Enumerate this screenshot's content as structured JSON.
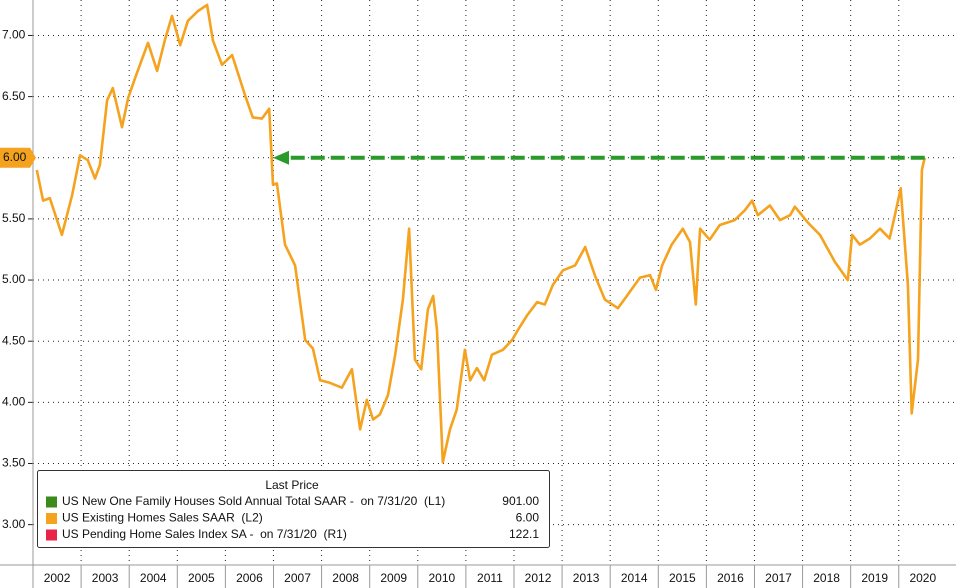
{
  "chart_data": {
    "type": "line",
    "series": [
      {
        "name": "US Existing Homes Sales SAAR  (L2)",
        "color": "#f5a21e",
        "x": [
          2002.08,
          2002.21,
          2002.35,
          2002.6,
          2002.81,
          2002.98,
          2003.14,
          2003.29,
          2003.39,
          2003.54,
          2003.66,
          2003.85,
          2003.98,
          2004.12,
          2004.39,
          2004.58,
          2004.74,
          2004.89,
          2005.06,
          2005.22,
          2005.43,
          2005.62,
          2005.74,
          2005.93,
          2006.14,
          2006.41,
          2006.57,
          2006.76,
          2006.91,
          2006.99,
          2007.07,
          2007.24,
          2007.45,
          2007.66,
          2007.82,
          2007.97,
          2008.17,
          2008.42,
          2008.63,
          2008.8,
          2008.94,
          2009.07,
          2009.21,
          2009.38,
          2009.53,
          2009.69,
          2009.82,
          2009.94,
          2010.07,
          2010.21,
          2010.32,
          2010.4,
          2010.52,
          2010.67,
          2010.81,
          2010.98,
          2011.09,
          2011.23,
          2011.38,
          2011.54,
          2011.77,
          2011.96,
          2012.08,
          2012.27,
          2012.48,
          2012.64,
          2012.81,
          2013.02,
          2013.27,
          2013.48,
          2013.68,
          2013.89,
          2014.16,
          2014.31,
          2014.62,
          2014.83,
          2014.95,
          2015.08,
          2015.28,
          2015.51,
          2015.66,
          2015.78,
          2015.87,
          2016.07,
          2016.28,
          2016.59,
          2016.8,
          2016.95,
          2017.07,
          2017.32,
          2017.53,
          2017.74,
          2017.84,
          2018.11,
          2018.36,
          2018.67,
          2018.94,
          2019.03,
          2019.19,
          2019.4,
          2019.61,
          2019.81,
          2019.92,
          2020.04,
          2020.19,
          2020.27,
          2020.4,
          2020.48,
          2020.54
        ],
        "values": [
          5.9,
          5.65,
          5.67,
          5.37,
          5.69,
          6.02,
          5.98,
          5.83,
          5.94,
          6.47,
          6.57,
          6.25,
          6.49,
          6.65,
          6.94,
          6.71,
          6.96,
          7.16,
          6.92,
          7.12,
          7.2,
          7.25,
          6.96,
          6.76,
          6.84,
          6.51,
          6.33,
          6.32,
          6.4,
          5.78,
          5.79,
          5.29,
          5.12,
          4.51,
          4.44,
          4.18,
          4.16,
          4.12,
          4.27,
          3.78,
          4.02,
          3.86,
          3.9,
          4.06,
          4.39,
          4.84,
          5.42,
          4.35,
          4.27,
          4.76,
          4.87,
          4.59,
          3.51,
          3.78,
          3.94,
          4.43,
          4.18,
          4.28,
          4.18,
          4.39,
          4.43,
          4.51,
          4.59,
          4.71,
          4.82,
          4.8,
          4.96,
          5.08,
          5.12,
          5.27,
          5.04,
          4.84,
          4.77,
          4.85,
          5.02,
          5.04,
          4.92,
          5.12,
          5.29,
          5.42,
          5.31,
          4.8,
          5.42,
          5.33,
          5.45,
          5.49,
          5.57,
          5.65,
          5.53,
          5.61,
          5.49,
          5.53,
          5.6,
          5.47,
          5.37,
          5.15,
          5.0,
          5.37,
          5.29,
          5.34,
          5.42,
          5.34,
          5.53,
          5.75,
          4.96,
          3.91,
          4.35,
          5.9,
          6.0
        ]
      }
    ],
    "xlim": [
      2002,
      2021.19
    ],
    "ylim": [
      2.67,
      7.29
    ],
    "xticks": [
      2002,
      2003,
      2004,
      2005,
      2006,
      2007,
      2008,
      2009,
      2010,
      2011,
      2012,
      2013,
      2014,
      2015,
      2016,
      2017,
      2018,
      2019,
      2020
    ],
    "yticks": [
      {
        "value": 3,
        "label": "3.00"
      },
      {
        "value": 3.5,
        "label": "3.50"
      },
      {
        "value": 4,
        "label": "4.00"
      },
      {
        "value": 4.5,
        "label": "4.50"
      },
      {
        "value": 5,
        "label": "5.00"
      },
      {
        "value": 5.5,
        "label": "5.50"
      },
      {
        "value": 6,
        "label": "6.00"
      },
      {
        "value": 6.5,
        "label": "6.50"
      },
      {
        "value": 7,
        "label": "7.00"
      }
    ],
    "grid": true,
    "last_price_tag": {
      "value": 6,
      "label": "6.00",
      "color": "#f5a21e"
    },
    "arrow": {
      "y": 6,
      "from": 2020.54,
      "to": 2006.99,
      "color": "#2a9a2a"
    },
    "legend": {
      "title": "Last Price",
      "position": "bottom-left",
      "entries": [
        {
          "name": "US New One Family Houses Sold Annual Total SAAR -  on 7/31/20  (L1)",
          "color": "#3a8a1c",
          "value": 901,
          "label": "901.00"
        },
        {
          "name": "US Existing Homes Sales SAAR  (L2)",
          "color": "#f5a21e",
          "value": 6,
          "label": "6.00"
        },
        {
          "name": "US Pending Home Sales Index SA -  on 7/31/20  (R1)",
          "color": "#e8234a",
          "value": 122.1,
          "label": "122.1"
        }
      ]
    }
  }
}
